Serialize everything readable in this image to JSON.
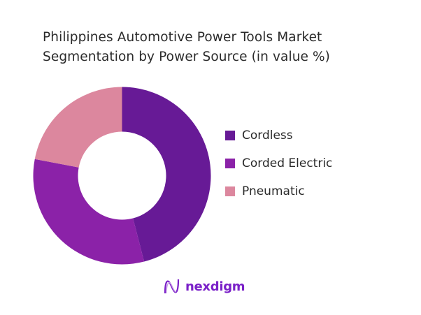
{
  "chart_data": {
    "type": "pie",
    "variant": "donut",
    "title": "Philippines Automotive Power Tools Market Segmentation by Power Source (in value %)",
    "title_lines": [
      "Philippines Automotive Power Tools Market",
      "Segmentation by Power Source (in value %)"
    ],
    "categories": [
      "Cordless",
      "Corded Electric",
      "Pneumatic"
    ],
    "values": [
      46,
      32,
      22
    ],
    "colors": [
      "#671a96",
      "#8b22a8",
      "#dc879e"
    ],
    "legend_placement": "right"
  },
  "brand": {
    "name": "nexdigm",
    "color": "#7a20c8"
  }
}
